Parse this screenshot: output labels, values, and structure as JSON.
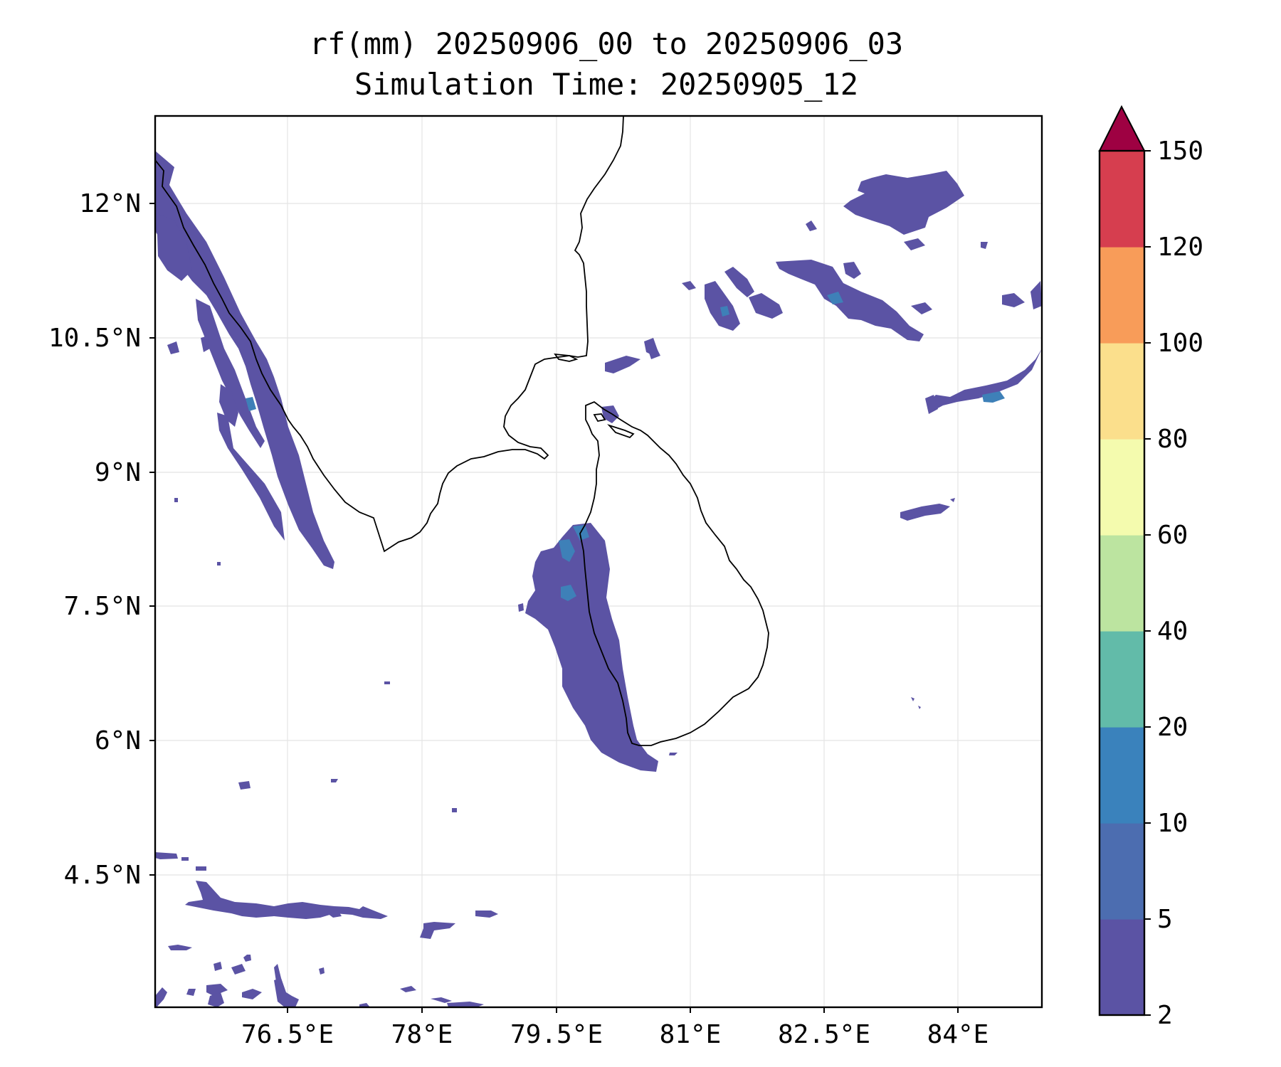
{
  "title": {
    "line1": "rf(mm) 20250906_00 to 20250906_03",
    "line2": "Simulation Time: 20250905_12"
  },
  "map": {
    "lon_range": [
      75.0,
      84.6
    ],
    "lat_range": [
      3.0,
      13.0
    ],
    "lon_ticks": [
      "76.5°E",
      "78°E",
      "79.5°E",
      "81°E",
      "82.5°E",
      "84°E"
    ],
    "lat_ticks": [
      "12°N",
      "10.5°N",
      "9°N",
      "7.5°N",
      "6°N",
      "4.5°N"
    ],
    "grid": true,
    "rain_fill_color": "#5b53a4",
    "rain_core_color": "#3e80b8"
  },
  "colorbar": {
    "labels": [
      "2",
      "5",
      "10",
      "20",
      "40",
      "60",
      "80",
      "100",
      "120",
      "150"
    ],
    "colors": [
      "#5b53a4",
      "#4c6db0",
      "#3a82bc",
      "#62bba9",
      "#bce4a0",
      "#f4fbae",
      "#fbdf8c",
      "#f89c59",
      "#d63e4f",
      "#9e0142"
    ],
    "extend": "max"
  }
}
